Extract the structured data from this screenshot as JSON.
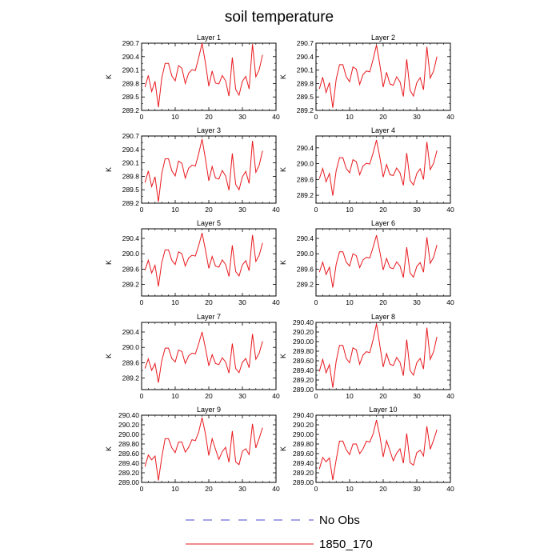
{
  "figure": {
    "title": "soil temperature",
    "legend": [
      {
        "label": "No Obs",
        "color": "#4a4ad0",
        "dash": true
      },
      {
        "label": "1850_170",
        "color": "#e8191e",
        "dash": false
      }
    ]
  },
  "chart_data": [
    {
      "type": "line",
      "title": "Layer 1",
      "ylabel": "K",
      "xlim": [
        0,
        40
      ],
      "ylim": [
        289.2,
        290.7
      ],
      "xticks": [
        0,
        10,
        20,
        30,
        40
      ],
      "yticks": [
        289.2,
        289.5,
        289.8,
        290.1,
        290.4,
        290.7
      ],
      "ytick_labels": [
        "289.2",
        "289.5",
        "289.8",
        "290.1",
        "290.4",
        "290.7"
      ],
      "x": [
        1,
        2,
        3,
        4,
        5,
        6,
        7,
        8,
        9,
        10,
        11,
        12,
        13,
        14,
        15,
        16,
        17,
        18,
        19,
        20,
        21,
        22,
        23,
        24,
        25,
        26,
        27,
        28,
        29,
        30,
        31,
        32,
        33,
        34,
        35,
        36
      ],
      "series": [
        {
          "name": "1850_170",
          "color": "#e8191e",
          "values": [
            289.72,
            289.98,
            289.62,
            289.85,
            289.27,
            289.92,
            290.25,
            290.25,
            289.97,
            289.86,
            290.2,
            290.14,
            289.8,
            290.03,
            290.11,
            290.09,
            290.38,
            290.7,
            290.26,
            289.74,
            290.08,
            289.81,
            289.79,
            289.98,
            289.86,
            289.52,
            290.38,
            289.67,
            289.54,
            289.85,
            289.96,
            289.68,
            290.68,
            289.95,
            290.11,
            290.44
          ]
        }
      ]
    },
    {
      "type": "line",
      "title": "Layer 2",
      "ylabel": "K",
      "xlim": [
        0,
        40
      ],
      "ylim": [
        289.2,
        290.7
      ],
      "xticks": [
        0,
        10,
        20,
        30,
        40
      ],
      "yticks": [
        289.2,
        289.5,
        289.8,
        290.1,
        290.4,
        290.7
      ],
      "ytick_labels": [
        "289.2",
        "289.5",
        "289.8",
        "290.1",
        "290.4",
        "290.7"
      ],
      "x": [
        1,
        2,
        3,
        4,
        5,
        6,
        7,
        8,
        9,
        10,
        11,
        12,
        13,
        14,
        15,
        16,
        17,
        18,
        19,
        20,
        21,
        22,
        23,
        24,
        25,
        26,
        27,
        28,
        29,
        30,
        31,
        32,
        33,
        34,
        35,
        36
      ],
      "series": [
        {
          "name": "1850_170",
          "color": "#e8191e",
          "values": [
            289.68,
            289.94,
            289.6,
            289.82,
            289.26,
            289.89,
            290.22,
            290.22,
            289.95,
            289.84,
            290.17,
            290.12,
            289.78,
            290.0,
            290.08,
            290.06,
            290.34,
            290.66,
            290.22,
            289.72,
            290.05,
            289.79,
            289.76,
            289.95,
            289.84,
            289.51,
            290.34,
            289.65,
            289.52,
            289.82,
            289.93,
            289.66,
            290.62,
            289.92,
            290.08,
            290.4
          ]
        }
      ]
    },
    {
      "type": "line",
      "title": "Layer 3",
      "ylabel": "K",
      "xlim": [
        0,
        40
      ],
      "ylim": [
        289.2,
        290.7
      ],
      "xticks": [
        0,
        10,
        20,
        30,
        40
      ],
      "yticks": [
        289.2,
        289.5,
        289.8,
        290.1,
        290.4,
        290.7
      ],
      "ytick_labels": [
        "289.2",
        "289.5",
        "289.8",
        "290.1",
        "290.4",
        "290.7"
      ],
      "x": [
        1,
        2,
        3,
        4,
        5,
        6,
        7,
        8,
        9,
        10,
        11,
        12,
        13,
        14,
        15,
        16,
        17,
        18,
        19,
        20,
        21,
        22,
        23,
        24,
        25,
        26,
        27,
        28,
        29,
        30,
        31,
        32,
        33,
        34,
        35,
        36
      ],
      "series": [
        {
          "name": "1850_170",
          "color": "#e8191e",
          "values": [
            289.66,
            289.92,
            289.57,
            289.79,
            289.23,
            289.86,
            290.19,
            290.19,
            289.92,
            289.81,
            290.14,
            290.09,
            289.76,
            289.98,
            290.05,
            290.03,
            290.31,
            290.63,
            290.19,
            289.7,
            290.02,
            289.76,
            289.74,
            289.93,
            289.81,
            289.49,
            290.31,
            289.62,
            289.5,
            289.79,
            289.91,
            289.64,
            290.59,
            289.89,
            290.05,
            290.37
          ]
        }
      ]
    },
    {
      "type": "line",
      "title": "Layer 4",
      "ylabel": "K",
      "xlim": [
        0,
        40
      ],
      "ylim": [
        289.0,
        290.7
      ],
      "xticks": [
        0,
        10,
        20,
        30,
        40
      ],
      "yticks": [
        289.2,
        289.6,
        290.0,
        290.4
      ],
      "ytick_labels": [
        "289.2",
        "289.6",
        "290.0",
        "290.4"
      ],
      "x": [
        1,
        2,
        3,
        4,
        5,
        6,
        7,
        8,
        9,
        10,
        11,
        12,
        13,
        14,
        15,
        16,
        17,
        18,
        19,
        20,
        21,
        22,
        23,
        24,
        25,
        26,
        27,
        28,
        29,
        30,
        31,
        32,
        33,
        34,
        35,
        36
      ],
      "series": [
        {
          "name": "1850_170",
          "color": "#e8191e",
          "values": [
            289.62,
            289.88,
            289.54,
            289.75,
            289.19,
            289.82,
            290.15,
            290.15,
            289.88,
            289.77,
            290.1,
            290.05,
            289.72,
            289.94,
            290.01,
            289.99,
            290.27,
            290.6,
            290.16,
            289.66,
            289.98,
            289.72,
            289.7,
            289.89,
            289.77,
            289.45,
            290.27,
            289.58,
            289.46,
            289.75,
            289.87,
            289.6,
            290.55,
            289.85,
            290.01,
            290.33
          ]
        }
      ]
    },
    {
      "type": "line",
      "title": "Layer 5",
      "ylabel": "K",
      "xlim": [
        0,
        40
      ],
      "ylim": [
        288.9,
        290.65
      ],
      "xticks": [
        0,
        10,
        20,
        30,
        40
      ],
      "yticks": [
        289.2,
        289.6,
        290.0,
        290.4
      ],
      "ytick_labels": [
        "289.2",
        "289.6",
        "290.0",
        "290.4"
      ],
      "x": [
        1,
        2,
        3,
        4,
        5,
        6,
        7,
        8,
        9,
        10,
        11,
        12,
        13,
        14,
        15,
        16,
        17,
        18,
        19,
        20,
        21,
        22,
        23,
        24,
        25,
        26,
        27,
        28,
        29,
        30,
        31,
        32,
        33,
        34,
        35,
        36
      ],
      "series": [
        {
          "name": "1850_170",
          "color": "#e8191e",
          "values": [
            289.57,
            289.83,
            289.5,
            289.7,
            289.15,
            289.77,
            290.1,
            290.1,
            289.83,
            289.72,
            290.05,
            290.0,
            289.68,
            289.89,
            289.96,
            289.94,
            290.22,
            290.54,
            290.1,
            289.62,
            289.93,
            289.68,
            289.65,
            289.84,
            289.72,
            289.41,
            290.22,
            289.54,
            289.42,
            289.71,
            289.82,
            289.56,
            290.49,
            289.8,
            289.96,
            290.28
          ]
        }
      ]
    },
    {
      "type": "line",
      "title": "Layer 6",
      "ylabel": "K",
      "xlim": [
        0,
        40
      ],
      "ylim": [
        288.9,
        290.65
      ],
      "xticks": [
        0,
        10,
        20,
        30,
        40
      ],
      "yticks": [
        289.2,
        289.6,
        290.0,
        290.4
      ],
      "ytick_labels": [
        "289.2",
        "289.6",
        "290.0",
        "290.4"
      ],
      "x": [
        1,
        2,
        3,
        4,
        5,
        6,
        7,
        8,
        9,
        10,
        11,
        12,
        13,
        14,
        15,
        16,
        17,
        18,
        19,
        20,
        21,
        22,
        23,
        24,
        25,
        26,
        27,
        28,
        29,
        30,
        31,
        32,
        33,
        34,
        35,
        36
      ],
      "series": [
        {
          "name": "1850_170",
          "color": "#e8191e",
          "values": [
            289.52,
            289.78,
            289.46,
            289.65,
            289.12,
            289.72,
            290.05,
            290.05,
            289.78,
            289.68,
            290.0,
            289.95,
            289.64,
            289.84,
            289.91,
            289.89,
            290.17,
            290.48,
            290.05,
            289.58,
            289.88,
            289.64,
            289.61,
            289.79,
            289.68,
            289.38,
            290.17,
            289.5,
            289.39,
            289.67,
            289.77,
            289.52,
            290.43,
            289.75,
            289.91,
            290.23
          ]
        }
      ]
    },
    {
      "type": "line",
      "title": "Layer 7",
      "ylabel": "K",
      "xlim": [
        0,
        40
      ],
      "ylim": [
        288.9,
        290.65
      ],
      "xticks": [
        0,
        10,
        20,
        30,
        40
      ],
      "yticks": [
        289.2,
        289.6,
        290.0,
        290.4
      ],
      "ytick_labels": [
        "289.2",
        "289.6",
        "290.0",
        "290.4"
      ],
      "x": [
        1,
        2,
        3,
        4,
        5,
        6,
        7,
        8,
        9,
        10,
        11,
        12,
        13,
        14,
        15,
        16,
        17,
        18,
        19,
        20,
        21,
        22,
        23,
        24,
        25,
        26,
        27,
        28,
        29,
        30,
        31,
        32,
        33,
        34,
        35,
        36
      ],
      "series": [
        {
          "name": "1850_170",
          "color": "#e8191e",
          "values": [
            289.45,
            289.7,
            289.4,
            289.58,
            289.08,
            289.65,
            289.98,
            289.98,
            289.71,
            289.62,
            289.93,
            289.89,
            289.58,
            289.78,
            289.85,
            289.83,
            290.1,
            290.4,
            289.98,
            289.52,
            289.81,
            289.58,
            289.55,
            289.73,
            289.62,
            289.33,
            290.1,
            289.45,
            289.34,
            289.61,
            289.71,
            289.47,
            290.35,
            289.69,
            289.85,
            290.16
          ]
        }
      ]
    },
    {
      "type": "line",
      "title": "Layer 8",
      "ylabel": "K",
      "xlim": [
        0,
        40
      ],
      "ylim": [
        289.0,
        290.4
      ],
      "xticks": [
        0,
        10,
        20,
        30,
        40
      ],
      "yticks": [
        289.0,
        289.2,
        289.4,
        289.6,
        289.8,
        290.0,
        290.2,
        290.4
      ],
      "ytick_labels": [
        "289.00",
        "289.20",
        "289.40",
        "289.60",
        "289.80",
        "290.00",
        "290.20",
        "290.40"
      ],
      "x": [
        1,
        2,
        3,
        4,
        5,
        6,
        7,
        8,
        9,
        10,
        11,
        12,
        13,
        14,
        15,
        16,
        17,
        18,
        19,
        20,
        21,
        22,
        23,
        24,
        25,
        26,
        27,
        28,
        29,
        30,
        31,
        32,
        33,
        34,
        35,
        36
      ],
      "series": [
        {
          "name": "1850_170",
          "color": "#e8191e",
          "values": [
            289.38,
            289.63,
            289.35,
            289.52,
            289.04,
            289.59,
            289.92,
            289.92,
            289.65,
            289.56,
            289.87,
            289.83,
            289.53,
            289.72,
            289.79,
            289.77,
            290.04,
            290.37,
            289.92,
            289.47,
            289.75,
            289.53,
            289.5,
            289.67,
            289.57,
            289.29,
            290.04,
            289.4,
            289.3,
            289.56,
            289.65,
            289.43,
            290.29,
            289.63,
            289.79,
            290.1
          ]
        }
      ]
    },
    {
      "type": "line",
      "title": "Layer 9",
      "ylabel": "K",
      "xlim": [
        0,
        40
      ],
      "ylim": [
        289.0,
        290.4
      ],
      "xticks": [
        0,
        10,
        20,
        30,
        40
      ],
      "yticks": [
        289.0,
        289.2,
        289.4,
        289.6,
        289.8,
        290.0,
        290.2,
        290.4
      ],
      "ytick_labels": [
        "289.00",
        "289.20",
        "289.40",
        "289.60",
        "289.80",
        "290.00",
        "290.20",
        "290.40"
      ],
      "x": [
        1,
        2,
        3,
        4,
        5,
        6,
        7,
        8,
        9,
        10,
        11,
        12,
        13,
        14,
        15,
        16,
        17,
        18,
        19,
        20,
        21,
        22,
        23,
        24,
        25,
        26,
        27,
        28,
        29,
        30,
        31,
        32,
        33,
        34,
        35,
        36
      ],
      "series": [
        {
          "name": "1850_170",
          "color": "#e8191e",
          "values": [
            289.33,
            289.57,
            289.47,
            289.55,
            289.04,
            289.52,
            289.91,
            289.91,
            289.72,
            289.62,
            289.84,
            289.84,
            289.63,
            289.73,
            289.89,
            289.87,
            290.05,
            290.35,
            290.01,
            289.56,
            289.91,
            289.69,
            289.48,
            289.64,
            289.73,
            289.42,
            290.07,
            289.43,
            289.37,
            289.65,
            289.7,
            289.58,
            290.22,
            289.72,
            289.92,
            290.14
          ]
        }
      ]
    },
    {
      "type": "line",
      "title": "Layer 10",
      "ylabel": "K",
      "xlim": [
        0,
        40
      ],
      "ylim": [
        289.0,
        290.4
      ],
      "xticks": [
        0,
        10,
        20,
        30,
        40
      ],
      "yticks": [
        289.0,
        289.2,
        289.4,
        289.6,
        289.8,
        290.0,
        290.2,
        290.4
      ],
      "ytick_labels": [
        "289.00",
        "289.20",
        "289.40",
        "289.60",
        "289.80",
        "290.00",
        "290.20",
        "290.40"
      ],
      "x": [
        1,
        2,
        3,
        4,
        5,
        6,
        7,
        8,
        9,
        10,
        11,
        12,
        13,
        14,
        15,
        16,
        17,
        18,
        19,
        20,
        21,
        22,
        23,
        24,
        25,
        26,
        27,
        28,
        29,
        30,
        31,
        32,
        33,
        34,
        35,
        36
      ],
      "series": [
        {
          "name": "1850_170",
          "color": "#e8191e",
          "values": [
            289.28,
            289.52,
            289.43,
            289.51,
            289.05,
            289.47,
            289.86,
            289.86,
            289.68,
            289.58,
            289.8,
            289.8,
            289.6,
            289.7,
            289.86,
            289.84,
            290.01,
            290.3,
            289.97,
            289.53,
            289.87,
            289.66,
            289.45,
            289.61,
            289.7,
            289.4,
            290.02,
            289.41,
            289.36,
            289.62,
            289.67,
            289.55,
            290.17,
            289.69,
            289.88,
            290.1
          ]
        }
      ]
    }
  ]
}
